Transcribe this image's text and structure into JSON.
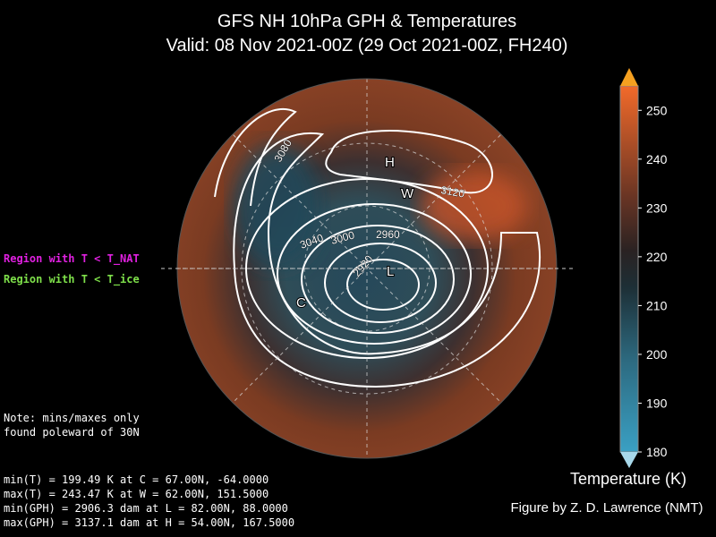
{
  "title": {
    "line1": "GFS NH 10hPa GPH & Temperatures",
    "line2": "Valid: 08 Nov 2021-00Z  (29 Oct 2021-00Z, FH240)"
  },
  "legend": {
    "nat": "Region with T < T_NAT",
    "ice": "Region with T < T_ice"
  },
  "note": [
    "Note: mins/maxes only",
    "found poleward of 30N"
  ],
  "stats": [
    "min(T) = 199.49 K at C = 67.00N,  -64.0000",
    "max(T) = 243.47 K at W = 62.00N,  151.5000",
    "min(GPH) = 2906.3 dam at L = 82.00N,   88.0000",
    "max(GPH) = 3137.1 dam at H = 54.00N,  167.5000"
  ],
  "markers": {
    "H": "H",
    "W": "W",
    "L": "L",
    "C": "C"
  },
  "contour_labels": [
    "3080",
    "3040",
    "3000",
    "2960",
    "2920",
    "3120"
  ],
  "colorbar": {
    "label": "Temperature (K)",
    "lim": [
      180,
      255
    ],
    "ticks": [
      180,
      190,
      200,
      210,
      220,
      230,
      240,
      250
    ]
  },
  "credit": "Figure by Z. D. Lawrence (NMT)"
}
